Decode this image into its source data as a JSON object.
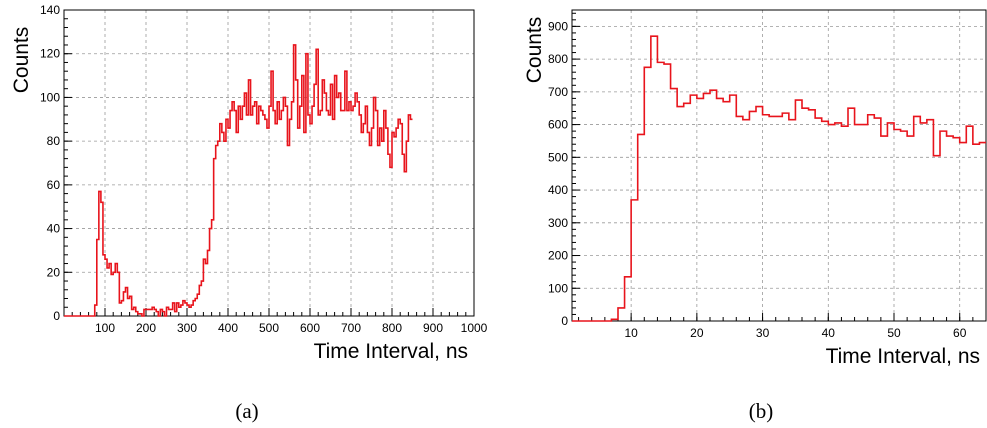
{
  "chart_data": [
    {
      "type": "histogram",
      "panel_label": "(a)",
      "xlabel": "Time Interval, ns",
      "ylabel": "Counts",
      "xlim": [
        0,
        1000
      ],
      "ylim": [
        0,
        140
      ],
      "xticks": [
        100,
        200,
        300,
        400,
        500,
        600,
        700,
        800,
        900,
        1000
      ],
      "yticks": [
        0,
        20,
        40,
        60,
        80,
        100,
        120,
        140
      ],
      "grid": true,
      "line_color": "#e8141c",
      "bin_width": 5,
      "x_start": 0,
      "counts": [
        0,
        0,
        0,
        0,
        0,
        0,
        0,
        0,
        0,
        0,
        0,
        0,
        0,
        0,
        0,
        5,
        35,
        57,
        52,
        28,
        26,
        22,
        24,
        19,
        20,
        24,
        20,
        6,
        7,
        11,
        13,
        8,
        9,
        3,
        4,
        2,
        1,
        1,
        0,
        3,
        3,
        3,
        3,
        4,
        3,
        2,
        0,
        3,
        2,
        0,
        4,
        3,
        3,
        6,
        2,
        6,
        4,
        5,
        7,
        6,
        5,
        4,
        5,
        7,
        8,
        10,
        14,
        16,
        26,
        24,
        30,
        40,
        44,
        72,
        78,
        80,
        88,
        84,
        80,
        90,
        86,
        94,
        98,
        94,
        84,
        96,
        90,
        96,
        102,
        92,
        108,
        92,
        96,
        98,
        88,
        96,
        94,
        92,
        90,
        86,
        96,
        112,
        94,
        88,
        98,
        90,
        94,
        100,
        96,
        78,
        90,
        98,
        124,
        108,
        86,
        96,
        110,
        84,
        120,
        92,
        88,
        96,
        106,
        122,
        92,
        94,
        108,
        102,
        94,
        92,
        106,
        90,
        110,
        100,
        102,
        94,
        94,
        112,
        94,
        98,
        94,
        96,
        102,
        98,
        92,
        84,
        88,
        96,
        84,
        78,
        86,
        100,
        94,
        78,
        86,
        80,
        94,
        86,
        74,
        68,
        84,
        82,
        86,
        90,
        88,
        74,
        66,
        80,
        92,
        90
      ]
    },
    {
      "type": "histogram",
      "panel_label": "(b)",
      "xlabel": "Time Interval, ns",
      "ylabel": "Counts",
      "xlim": [
        1,
        64
      ],
      "ylim": [
        0,
        950
      ],
      "xticks": [
        10,
        20,
        30,
        40,
        50,
        60
      ],
      "yticks": [
        0,
        100,
        200,
        300,
        400,
        500,
        600,
        700,
        800,
        900
      ],
      "grid": true,
      "line_color": "#e8141c",
      "bin_width": 1,
      "x_start": 1,
      "counts": [
        0,
        0,
        0,
        0,
        0,
        0,
        5,
        40,
        135,
        370,
        570,
        775,
        870,
        790,
        785,
        710,
        655,
        665,
        690,
        680,
        695,
        705,
        680,
        670,
        690,
        625,
        615,
        640,
        655,
        630,
        625,
        625,
        635,
        615,
        675,
        650,
        645,
        620,
        610,
        600,
        605,
        595,
        650,
        600,
        600,
        630,
        620,
        565,
        605,
        585,
        580,
        565,
        625,
        605,
        615,
        505,
        580,
        565,
        560,
        545,
        595,
        540,
        545,
        580,
        600
      ]
    }
  ]
}
